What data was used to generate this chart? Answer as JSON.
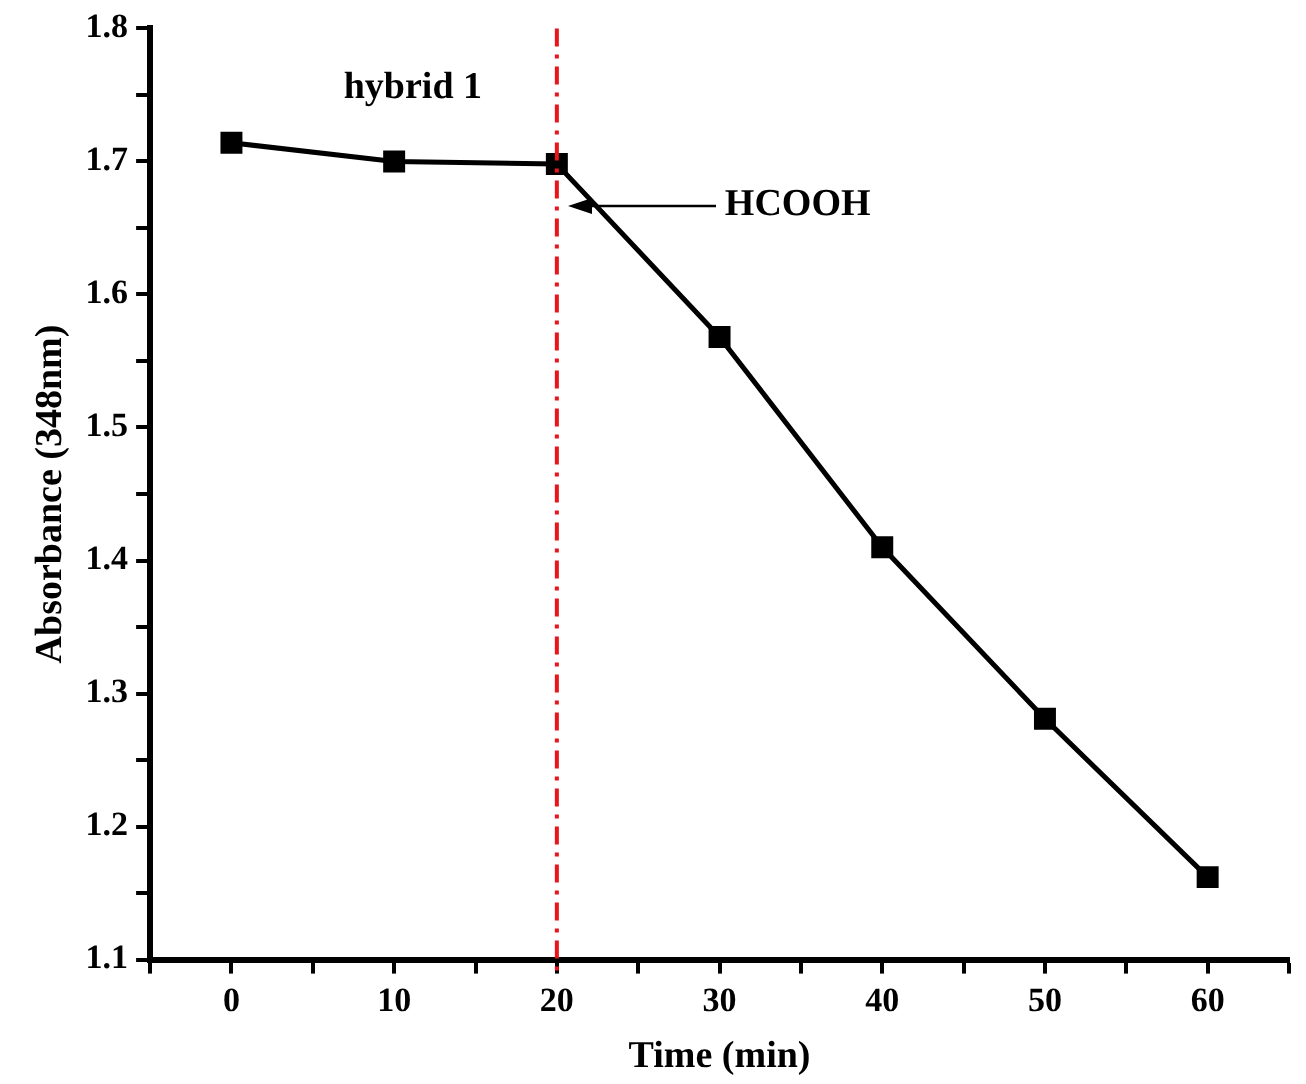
{
  "chart_data": {
    "type": "line",
    "xlabel": "Time (min)",
    "ylabel": "Absorbance (348nm)",
    "x": [
      0,
      10,
      20,
      30,
      40,
      50,
      60
    ],
    "series": [
      {
        "color": "#000000",
        "values": [
          1.714,
          1.7,
          1.698,
          1.568,
          1.41,
          1.281,
          1.162
        ]
      }
    ],
    "xlim": [
      -5,
      65
    ],
    "xticks": [
      {
        "value": -5,
        "label": null
      },
      0,
      {
        "value": 5,
        "label": null
      },
      10,
      {
        "value": 15,
        "label": null
      },
      20,
      {
        "value": 25,
        "label": null
      },
      30,
      {
        "value": 35,
        "label": null
      },
      40,
      {
        "value": 45,
        "label": null
      },
      50,
      {
        "value": 55,
        "label": null
      },
      60,
      {
        "value": 65,
        "label": null
      }
    ],
    "ylim": [
      1.1,
      1.8
    ],
    "yticks": [
      1.1,
      {
        "value": 1.15,
        "label": null
      },
      1.2,
      {
        "value": 1.25,
        "label": null
      },
      1.3,
      {
        "value": 1.35,
        "label": null
      },
      1.4,
      {
        "value": 1.45,
        "label": null
      },
      1.5,
      {
        "value": 1.55,
        "label": null
      },
      1.6,
      {
        "value": 1.65,
        "label": null
      },
      1.7,
      {
        "value": 1.75,
        "label": null
      },
      1.8
    ],
    "ref_lines": [
      {
        "axis": "x",
        "value": 20,
        "color": "#e8151b",
        "line_style": "dashed"
      }
    ],
    "annotations": [
      "hybrid 1",
      "HCOOH"
    ],
    "marker": "square",
    "line_style": "solid",
    "grid": false,
    "legend": false
  }
}
